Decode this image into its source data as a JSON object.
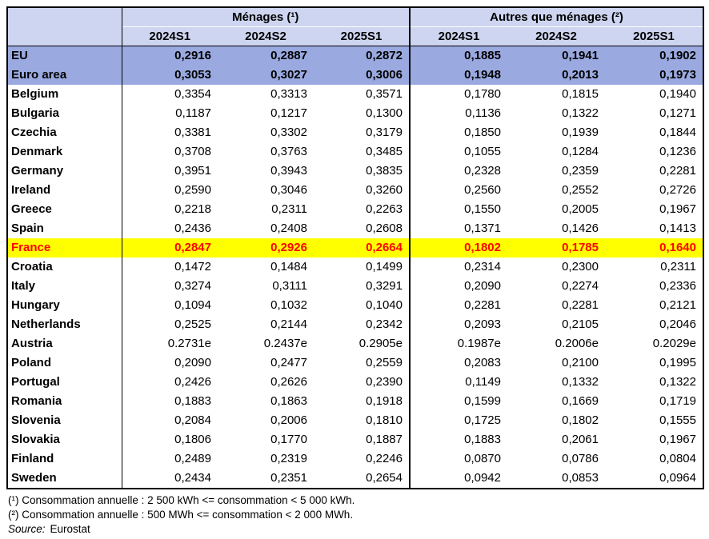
{
  "table": {
    "corner_label": "",
    "groups": [
      {
        "label": "Ménages (¹)",
        "columns": [
          "2024S1",
          "2024S2",
          "2025S1"
        ]
      },
      {
        "label": "Autres que ménages (²)",
        "columns": [
          "2024S1",
          "2024S2",
          "2025S1"
        ]
      }
    ],
    "rows": [
      {
        "name": "EU",
        "style": "aggregate",
        "menages": [
          "0,2916",
          "0,2887",
          "0,2872"
        ],
        "autres": [
          "0,1885",
          "0,1941",
          "0,1902"
        ]
      },
      {
        "name": "Euro area",
        "style": "aggregate",
        "menages": [
          "0,3053",
          "0,3027",
          "0,3006"
        ],
        "autres": [
          "0,1948",
          "0,2013",
          "0,1973"
        ]
      },
      {
        "name": "Belgium",
        "style": "",
        "menages": [
          "0,3354",
          "0,3313",
          "0,3571"
        ],
        "autres": [
          "0,1780",
          "0,1815",
          "0,1940"
        ]
      },
      {
        "name": "Bulgaria",
        "style": "",
        "menages": [
          "0,1187",
          "0,1217",
          "0,1300"
        ],
        "autres": [
          "0,1136",
          "0,1322",
          "0,1271"
        ]
      },
      {
        "name": "Czechia",
        "style": "",
        "menages": [
          "0,3381",
          "0,3302",
          "0,3179"
        ],
        "autres": [
          "0,1850",
          "0,1939",
          "0,1844"
        ]
      },
      {
        "name": "Denmark",
        "style": "",
        "menages": [
          "0,3708",
          "0,3763",
          "0,3485"
        ],
        "autres": [
          "0,1055",
          "0,1284",
          "0,1236"
        ]
      },
      {
        "name": "Germany",
        "style": "",
        "menages": [
          "0,3951",
          "0,3943",
          "0,3835"
        ],
        "autres": [
          "0,2328",
          "0,2359",
          "0,2281"
        ]
      },
      {
        "name": "Ireland",
        "style": "",
        "menages": [
          "0,2590",
          "0,3046",
          "0,3260"
        ],
        "autres": [
          "0,2560",
          "0,2552",
          "0,2726"
        ]
      },
      {
        "name": "Greece",
        "style": "",
        "menages": [
          "0,2218",
          "0,2311",
          "0,2263"
        ],
        "autres": [
          "0,1550",
          "0,2005",
          "0,1967"
        ]
      },
      {
        "name": "Spain",
        "style": "",
        "menages": [
          "0,2436",
          "0,2408",
          "0,2608"
        ],
        "autres": [
          "0,1371",
          "0,1426",
          "0,1413"
        ]
      },
      {
        "name": "France",
        "style": "highlight",
        "menages": [
          "0,2847",
          "0,2926",
          "0,2664"
        ],
        "autres": [
          "0,1802",
          "0,1785",
          "0,1640"
        ]
      },
      {
        "name": "Croatia",
        "style": "",
        "menages": [
          "0,1472",
          "0,1484",
          "0,1499"
        ],
        "autres": [
          "0,2314",
          "0,2300",
          "0,2311"
        ]
      },
      {
        "name": "Italy",
        "style": "",
        "menages": [
          "0,3274",
          "0,3111",
          "0,3291"
        ],
        "autres": [
          "0,2090",
          "0,2274",
          "0,2336"
        ]
      },
      {
        "name": "Hungary",
        "style": "",
        "menages": [
          "0,1094",
          "0,1032",
          "0,1040"
        ],
        "autres": [
          "0,2281",
          "0,2281",
          "0,2121"
        ]
      },
      {
        "name": "Netherlands",
        "style": "",
        "menages": [
          "0,2525",
          "0,2144",
          "0,2342"
        ],
        "autres": [
          "0,2093",
          "0,2105",
          "0,2046"
        ]
      },
      {
        "name": "Austria",
        "style": "",
        "menages": [
          "0.2731e",
          "0.2437e",
          "0.2905e"
        ],
        "autres": [
          "0.1987e",
          "0.2006e",
          "0.2029e"
        ]
      },
      {
        "name": "Poland",
        "style": "",
        "menages": [
          "0,2090",
          "0,2477",
          "0,2559"
        ],
        "autres": [
          "0,2083",
          "0,2100",
          "0,1995"
        ]
      },
      {
        "name": "Portugal",
        "style": "",
        "menages": [
          "0,2426",
          "0,2626",
          "0,2390"
        ],
        "autres": [
          "0,1149",
          "0,1332",
          "0,1322"
        ]
      },
      {
        "name": "Romania",
        "style": "",
        "menages": [
          "0,1883",
          "0,1863",
          "0,1918"
        ],
        "autres": [
          "0,1599",
          "0,1669",
          "0,1719"
        ]
      },
      {
        "name": "Slovenia",
        "style": "",
        "menages": [
          "0,2084",
          "0,2006",
          "0,1810"
        ],
        "autres": [
          "0,1725",
          "0,1802",
          "0,1555"
        ]
      },
      {
        "name": "Slovakia",
        "style": "",
        "menages": [
          "0,1806",
          "0,1770",
          "0,1887"
        ],
        "autres": [
          "0,1883",
          "0,2061",
          "0,1967"
        ]
      },
      {
        "name": "Finland",
        "style": "",
        "menages": [
          "0,2489",
          "0,2319",
          "0,2246"
        ],
        "autres": [
          "0,0870",
          "0,0786",
          "0,0804"
        ]
      },
      {
        "name": "Sweden",
        "style": "",
        "menages": [
          "0,2434",
          "0,2351",
          "0,2654"
        ],
        "autres": [
          "0,0942",
          "0,0853",
          "0,0964"
        ]
      }
    ]
  },
  "footnotes": [
    "(¹) Consommation annuelle : 2 500 kWh <= consommation < 5 000 kWh.",
    "(²) Consommation annuelle : 500 MWh <= consommation < 2 000 MWh."
  ],
  "source": {
    "label": "Source:",
    "value": "Eurostat"
  },
  "colors": {
    "header_bg": "#CDD5F0",
    "aggregate_row_bg": "#9AAAE0",
    "highlight_row_bg": "#FFFF00",
    "highlight_text": "#FF0000",
    "border": "#000000"
  }
}
